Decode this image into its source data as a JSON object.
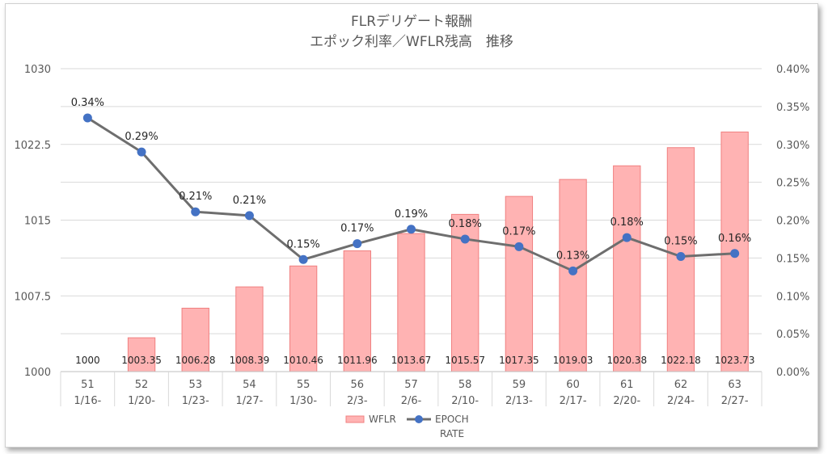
{
  "chart_data": {
    "type": "bar+line",
    "title": [
      "FLRデリゲート報酬",
      "エポック利率／WFLR残高　推移"
    ],
    "categories": [
      {
        "epoch": "51",
        "date": "1/16-"
      },
      {
        "epoch": "52",
        "date": "1/20-"
      },
      {
        "epoch": "53",
        "date": "1/23-"
      },
      {
        "epoch": "54",
        "date": "1/27-"
      },
      {
        "epoch": "55",
        "date": "1/30-"
      },
      {
        "epoch": "56",
        "date": "2/3-"
      },
      {
        "epoch": "57",
        "date": "2/6-"
      },
      {
        "epoch": "58",
        "date": "2/10-"
      },
      {
        "epoch": "59",
        "date": "2/13-"
      },
      {
        "epoch": "60",
        "date": "2/17-"
      },
      {
        "epoch": "61",
        "date": "2/20-"
      },
      {
        "epoch": "62",
        "date": "2/24-"
      },
      {
        "epoch": "63",
        "date": "2/27-"
      }
    ],
    "series": [
      {
        "name": "WFLR",
        "kind": "bar",
        "axis": "left",
        "color": "#ffb3b3",
        "border": "#f08080",
        "values": [
          1000,
          1003.35,
          1006.28,
          1008.39,
          1010.46,
          1011.96,
          1013.67,
          1015.57,
          1017.35,
          1019.03,
          1020.38,
          1022.18,
          1023.73
        ],
        "labels": [
          "1000",
          "1003.35",
          "1006.28",
          "1008.39",
          "1010.46",
          "1011.96",
          "1013.67",
          "1015.57",
          "1017.35",
          "1019.03",
          "1020.38",
          "1022.18",
          "1023.73"
        ]
      },
      {
        "name": "EPOCH RATE",
        "kind": "line",
        "axis": "right",
        "color": "#6e6e6e",
        "marker_color": "#4472c4",
        "values": [
          0.335,
          0.29,
          0.211,
          0.206,
          0.148,
          0.169,
          0.188,
          0.175,
          0.165,
          0.133,
          0.177,
          0.152,
          0.156
        ],
        "labels": [
          "0.34%",
          "0.29%",
          "0.21%",
          "0.21%",
          "0.15%",
          "0.17%",
          "0.19%",
          "0.18%",
          "0.17%",
          "0.13%",
          "0.18%",
          "0.15%",
          "0.16%"
        ]
      }
    ],
    "y_left": {
      "min": 1000,
      "max": 1030,
      "ticks": [
        "1000",
        "1007.5",
        "1015",
        "1022.5",
        "1030"
      ]
    },
    "y_right": {
      "min": 0,
      "max": 0.4,
      "ticks": [
        "0.00%",
        "0.05%",
        "0.10%",
        "0.15%",
        "0.20%",
        "0.25%",
        "0.30%",
        "0.35%",
        "0.40%"
      ]
    },
    "grid": true,
    "legend": {
      "position": "bottom",
      "items": [
        "WFLR",
        "EPOCH",
        "RATE"
      ]
    }
  }
}
